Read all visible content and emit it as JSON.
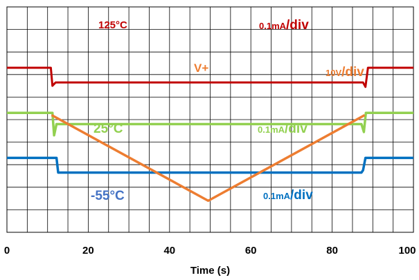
{
  "chart_data": {
    "type": "line",
    "title": "",
    "xlabel": "Time (s)",
    "ylabel": "",
    "xlim": [
      0,
      100
    ],
    "xticks": [
      0,
      20,
      40,
      60,
      80,
      100
    ],
    "grid": true,
    "grid_divisions": {
      "x": 20,
      "y": 10
    },
    "series": [
      {
        "id": "s125",
        "color": "#c00000",
        "x": [
          0,
          10.8,
          11.2,
          12,
          87.6,
          88.2,
          88.8,
          100
        ],
        "y": [
          2.7,
          2.7,
          3.5,
          3.35,
          3.35,
          3.55,
          2.7,
          2.7
        ]
      },
      {
        "id": "vplus",
        "color": "#ed7d31",
        "x": [
          11,
          49.5,
          88
        ],
        "y": [
          4.8,
          8.6,
          4.8
        ]
      },
      {
        "id": "s25",
        "color": "#92d050",
        "x": [
          0,
          11.2,
          11.6,
          12.2,
          87.2,
          87.8,
          88.3,
          100
        ],
        "y": [
          4.7,
          4.7,
          5.7,
          5.2,
          5.2,
          5.55,
          4.7,
          4.7
        ]
      },
      {
        "id": "sm55",
        "color": "#0070c0",
        "x": [
          0,
          12.2,
          12.6,
          87.2,
          87.6,
          88.2,
          100
        ],
        "y": [
          6.7,
          6.7,
          7.35,
          7.35,
          7.25,
          6.7,
          6.7
        ]
      }
    ],
    "annotations": [
      {
        "id": "label-125c",
        "text": "125°C",
        "color": "#c00000"
      },
      {
        "id": "scale-125c",
        "text": "0.1mA/div",
        "color": "#c00000"
      },
      {
        "id": "label-vplus",
        "text": "V+",
        "color": "#ed7d31"
      },
      {
        "id": "scale-vplus",
        "text": "10V/div",
        "color": "#ed7d31"
      },
      {
        "id": "label-25c",
        "text": "25°C",
        "color": "#92d050"
      },
      {
        "id": "scale-25c",
        "text": "0.1mA/div",
        "color": "#92d050"
      },
      {
        "id": "label-m55c",
        "text": "-55°C",
        "color": "#4472c4"
      },
      {
        "id": "scale-m55c",
        "text": "0.1mA/div",
        "color": "#0070c0"
      }
    ]
  }
}
